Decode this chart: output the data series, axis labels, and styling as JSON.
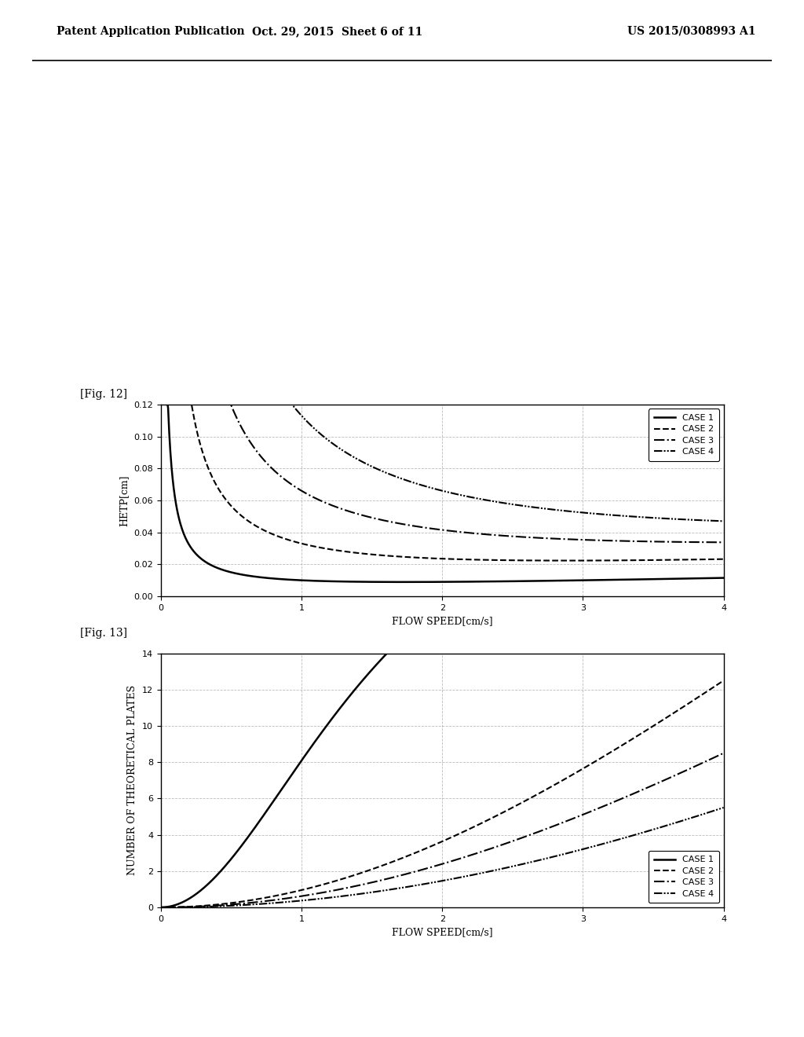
{
  "header_left": "Patent Application Publication",
  "header_mid": "Oct. 29, 2015  Sheet 6 of 11",
  "header_right": "US 2015/0308993 A1",
  "fig12_label": "[Fig. 12]",
  "fig13_label": "[Fig. 13]",
  "fig12_ylabel": "HETP[cm]",
  "fig12_xlabel": "FLOW SPEED[cm/s]",
  "fig13_ylabel": "NUMBER OF THEORETICAL PLATES",
  "fig13_xlabel": "FLOW SPEED[cm/s]",
  "fig12_ylim": [
    0,
    0.12
  ],
  "fig12_xlim": [
    0,
    4
  ],
  "fig13_ylim": [
    0,
    14
  ],
  "fig13_xlim": [
    0,
    4
  ],
  "fig12_yticks": [
    0,
    0.02,
    0.04,
    0.06,
    0.08,
    0.1,
    0.12
  ],
  "fig12_xticks": [
    0,
    1,
    2,
    3,
    4
  ],
  "fig13_yticks": [
    0,
    2,
    4,
    6,
    8,
    10,
    12,
    14
  ],
  "fig13_xticks": [
    0,
    1,
    2,
    3,
    4
  ],
  "legend_labels": [
    "CASE 1",
    "CASE 2",
    "CASE 3",
    "CASE 4"
  ],
  "line_color": "#000000",
  "background_color": "#ffffff",
  "grid_color": "#aaaaaa",
  "font_size_header": 10,
  "font_size_label": 9,
  "font_size_tick": 8,
  "font_size_legend": 8,
  "font_size_fig_label": 10
}
